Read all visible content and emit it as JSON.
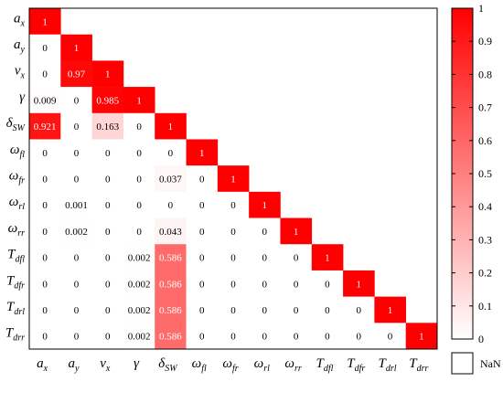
{
  "chart_data": {
    "type": "heatmap",
    "variables": [
      {
        "base": "a",
        "sub": "x"
      },
      {
        "base": "a",
        "sub": "y"
      },
      {
        "base": "v",
        "sub": "x"
      },
      {
        "base": "γ",
        "sub": ""
      },
      {
        "base": "δ",
        "sub": "SW"
      },
      {
        "base": "ω",
        "sub": "fl"
      },
      {
        "base": "ω",
        "sub": "fr"
      },
      {
        "base": "ω",
        "sub": "rl"
      },
      {
        "base": "ω",
        "sub": "rr"
      },
      {
        "base": "T",
        "sub": "dfl"
      },
      {
        "base": "T",
        "sub": "dfr"
      },
      {
        "base": "T",
        "sub": "drl"
      },
      {
        "base": "T",
        "sub": "drr"
      }
    ],
    "values": [
      [
        "1"
      ],
      [
        "0",
        "1"
      ],
      [
        "0",
        "0.97",
        "1"
      ],
      [
        "0.009",
        "0",
        "0.985",
        "1"
      ],
      [
        "0.921",
        "0",
        "0.163",
        "0",
        "1"
      ],
      [
        "0",
        "0",
        "0",
        "0",
        "0",
        "1"
      ],
      [
        "0",
        "0",
        "0",
        "0",
        "0.037",
        "0",
        "1"
      ],
      [
        "0",
        "0.001",
        "0",
        "0",
        "0",
        "0",
        "0",
        "1"
      ],
      [
        "0",
        "0.002",
        "0",
        "0",
        "0.043",
        "0",
        "0",
        "0",
        "1"
      ],
      [
        "0",
        "0",
        "0",
        "0.002",
        "0.586",
        "0",
        "0",
        "0",
        "0",
        "1"
      ],
      [
        "0",
        "0",
        "0",
        "0.002",
        "0.586",
        "0",
        "0",
        "0",
        "0",
        "0",
        "1"
      ],
      [
        "0",
        "0",
        "0",
        "0.002",
        "0.586",
        "0",
        "0",
        "0",
        "0",
        "0",
        "0",
        "1"
      ],
      [
        "0",
        "0",
        "0",
        "0.002",
        "0.586",
        "0",
        "0",
        "0",
        "0",
        "0",
        "0",
        "0",
        "1"
      ]
    ],
    "colorbar": {
      "min": 0,
      "max": 1,
      "ticks": [
        "0",
        "0.1",
        "0.2",
        "0.3",
        "0.4",
        "0.5",
        "0.6",
        "0.7",
        "0.8",
        "0.9",
        "1"
      ],
      "color_low": "#ffffff",
      "color_high": "#ff0000"
    },
    "nan_label": "NaN"
  }
}
